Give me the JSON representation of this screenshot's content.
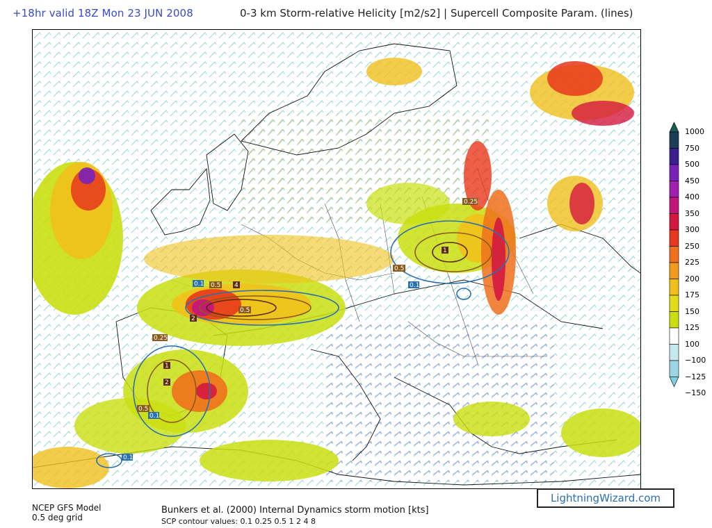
{
  "header": {
    "valid_time": "+18hr valid 18Z Mon 23 JUN 2008",
    "title": "0-3 km Storm-relative Helicity [m2/s2] | Supercell Composite Param. (lines)"
  },
  "legend": {
    "ticks": [
      "1000",
      "750",
      "500",
      "450",
      "400",
      "350",
      "300",
      "250",
      "225",
      "200",
      "175",
      "150",
      "125",
      "100",
      "−100",
      "−125",
      "−150"
    ],
    "colors": [
      "#1d3c56",
      "#3b1f8f",
      "#7a22b8",
      "#a01fb0",
      "#c2177a",
      "#d4183f",
      "#e8371c",
      "#f0701c",
      "#f29a1d",
      "#f0c11b",
      "#e3dc18",
      "#c9df10",
      "#ffffff",
      "#c5e9ec",
      "#9bd6e2"
    ]
  },
  "map": {
    "contour_labels": [
      "0.1",
      "0.5",
      "2",
      "4",
      "0.25",
      "1",
      "0.5",
      "2",
      "0.1",
      "0.5",
      "0.25",
      "1",
      "0.1",
      "0.1",
      "0.5"
    ]
  },
  "footer": {
    "model": "NCEP GFS Model",
    "grid": "0.5 deg grid",
    "motion": "Bunkers et al. (2000) Internal Dynamics storm motion [kts]",
    "scp": "SCP contour values: 0.1 0.25 0.5 1 2 4 8",
    "brand": "LightningWizard.com"
  }
}
